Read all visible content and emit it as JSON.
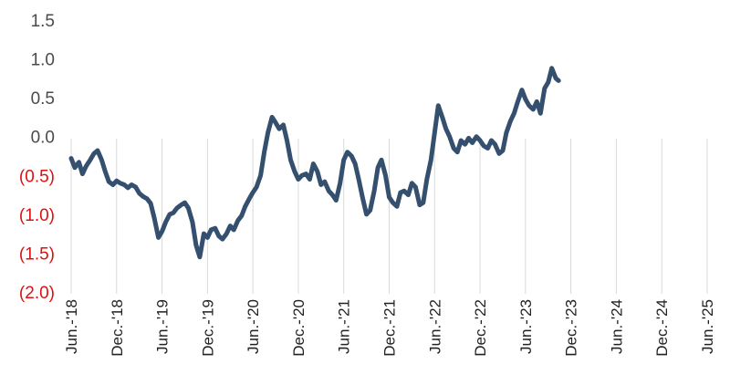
{
  "chart_data": {
    "type": "line",
    "title": "",
    "xlabel": "",
    "ylabel": "",
    "ylim": [
      -2.0,
      1.5
    ],
    "y_ticks": [
      {
        "value": 1.5,
        "label": "1.5",
        "color": "#4a4a4a"
      },
      {
        "value": 1.0,
        "label": "1.0",
        "color": "#4a4a4a"
      },
      {
        "value": 0.5,
        "label": "0.5",
        "color": "#4a4a4a"
      },
      {
        "value": 0.0,
        "label": "0.0",
        "color": "#4a4a4a"
      },
      {
        "value": -0.5,
        "label": "(0.5)",
        "color": "#e01010"
      },
      {
        "value": -1.0,
        "label": "(1.0)",
        "color": "#e01010"
      },
      {
        "value": -1.5,
        "label": "(1.5)",
        "color": "#e01010"
      },
      {
        "value": -2.0,
        "label": "(2.0)",
        "color": "#e01010"
      }
    ],
    "x_ticks": [
      "Jun.-'18",
      "Dec.-'18",
      "Jun.-'19",
      "Dec.-'19",
      "Jun.-'20",
      "Dec.-'20",
      "Jun.-'21",
      "Dec.-'21",
      "Jun.-'22",
      "Dec.-'22",
      "Jun.-'23",
      "Dec.-'23",
      "Jun.-'24",
      "Dec.-'24",
      "Jun.-'25"
    ],
    "grid": {
      "vertical": true,
      "horizontal": false
    },
    "legend": "none",
    "series": [
      {
        "color": "#34506e",
        "points": [
          [
            0.0,
            -0.28
          ],
          [
            0.08,
            -0.4
          ],
          [
            0.17,
            -0.33
          ],
          [
            0.25,
            -0.48
          ],
          [
            0.33,
            -0.38
          ],
          [
            0.42,
            -0.3
          ],
          [
            0.5,
            -0.22
          ],
          [
            0.58,
            -0.18
          ],
          [
            0.67,
            -0.3
          ],
          [
            0.75,
            -0.45
          ],
          [
            0.83,
            -0.58
          ],
          [
            0.92,
            -0.62
          ],
          [
            1.0,
            -0.57
          ],
          [
            1.08,
            -0.6
          ],
          [
            1.17,
            -0.62
          ],
          [
            1.25,
            -0.66
          ],
          [
            1.33,
            -0.62
          ],
          [
            1.42,
            -0.65
          ],
          [
            1.5,
            -0.73
          ],
          [
            1.58,
            -0.77
          ],
          [
            1.67,
            -0.8
          ],
          [
            1.75,
            -0.86
          ],
          [
            1.83,
            -1.05
          ],
          [
            1.92,
            -1.3
          ],
          [
            2.0,
            -1.22
          ],
          [
            2.08,
            -1.1
          ],
          [
            2.17,
            -1.0
          ],
          [
            2.25,
            -0.98
          ],
          [
            2.33,
            -0.92
          ],
          [
            2.42,
            -0.88
          ],
          [
            2.5,
            -0.85
          ],
          [
            2.58,
            -0.92
          ],
          [
            2.67,
            -1.1
          ],
          [
            2.75,
            -1.4
          ],
          [
            2.83,
            -1.55
          ],
          [
            2.92,
            -1.25
          ],
          [
            3.0,
            -1.3
          ],
          [
            3.08,
            -1.2
          ],
          [
            3.17,
            -1.18
          ],
          [
            3.25,
            -1.28
          ],
          [
            3.33,
            -1.32
          ],
          [
            3.42,
            -1.25
          ],
          [
            3.5,
            -1.15
          ],
          [
            3.58,
            -1.2
          ],
          [
            3.67,
            -1.08
          ],
          [
            3.75,
            -1.02
          ],
          [
            3.83,
            -0.9
          ],
          [
            3.92,
            -0.8
          ],
          [
            4.0,
            -0.72
          ],
          [
            4.08,
            -0.65
          ],
          [
            4.17,
            -0.5
          ],
          [
            4.25,
            -0.2
          ],
          [
            4.33,
            0.05
          ],
          [
            4.42,
            0.25
          ],
          [
            4.5,
            0.18
          ],
          [
            4.58,
            0.1
          ],
          [
            4.67,
            0.15
          ],
          [
            4.75,
            -0.05
          ],
          [
            4.83,
            -0.3
          ],
          [
            4.92,
            -0.45
          ],
          [
            5.0,
            -0.55
          ],
          [
            5.08,
            -0.5
          ],
          [
            5.17,
            -0.48
          ],
          [
            5.25,
            -0.55
          ],
          [
            5.33,
            -0.35
          ],
          [
            5.42,
            -0.45
          ],
          [
            5.5,
            -0.62
          ],
          [
            5.58,
            -0.58
          ],
          [
            5.67,
            -0.7
          ],
          [
            5.75,
            -0.75
          ],
          [
            5.83,
            -0.82
          ],
          [
            5.92,
            -0.6
          ],
          [
            6.0,
            -0.3
          ],
          [
            6.08,
            -0.2
          ],
          [
            6.17,
            -0.25
          ],
          [
            6.25,
            -0.35
          ],
          [
            6.33,
            -0.55
          ],
          [
            6.42,
            -0.8
          ],
          [
            6.5,
            -1.0
          ],
          [
            6.58,
            -0.95
          ],
          [
            6.67,
            -0.7
          ],
          [
            6.75,
            -0.4
          ],
          [
            6.83,
            -0.3
          ],
          [
            6.92,
            -0.5
          ],
          [
            7.0,
            -0.78
          ],
          [
            7.08,
            -0.85
          ],
          [
            7.17,
            -0.9
          ],
          [
            7.25,
            -0.72
          ],
          [
            7.33,
            -0.7
          ],
          [
            7.42,
            -0.75
          ],
          [
            7.5,
            -0.6
          ],
          [
            7.58,
            -0.65
          ],
          [
            7.67,
            -0.88
          ],
          [
            7.75,
            -0.85
          ],
          [
            7.83,
            -0.55
          ],
          [
            7.92,
            -0.3
          ],
          [
            8.0,
            0.05
          ],
          [
            8.08,
            0.4
          ],
          [
            8.17,
            0.25
          ],
          [
            8.25,
            0.1
          ],
          [
            8.33,
            0.0
          ],
          [
            8.42,
            -0.15
          ],
          [
            8.5,
            -0.2
          ],
          [
            8.58,
            -0.05
          ],
          [
            8.67,
            -0.1
          ],
          [
            8.75,
            -0.02
          ],
          [
            8.83,
            -0.08
          ],
          [
            8.92,
            0.0
          ],
          [
            9.0,
            -0.05
          ],
          [
            9.08,
            -0.12
          ],
          [
            9.17,
            -0.15
          ],
          [
            9.25,
            -0.05
          ],
          [
            9.33,
            -0.1
          ],
          [
            9.42,
            -0.22
          ],
          [
            9.5,
            -0.18
          ],
          [
            9.58,
            0.05
          ],
          [
            9.67,
            0.2
          ],
          [
            9.75,
            0.3
          ],
          [
            9.83,
            0.45
          ],
          [
            9.92,
            0.6
          ],
          [
            10.0,
            0.48
          ],
          [
            10.08,
            0.4
          ],
          [
            10.17,
            0.35
          ],
          [
            10.25,
            0.45
          ],
          [
            10.33,
            0.3
          ],
          [
            10.42,
            0.62
          ],
          [
            10.5,
            0.7
          ],
          [
            10.58,
            0.88
          ],
          [
            10.67,
            0.75
          ],
          [
            10.73,
            0.72
          ]
        ]
      }
    ]
  }
}
